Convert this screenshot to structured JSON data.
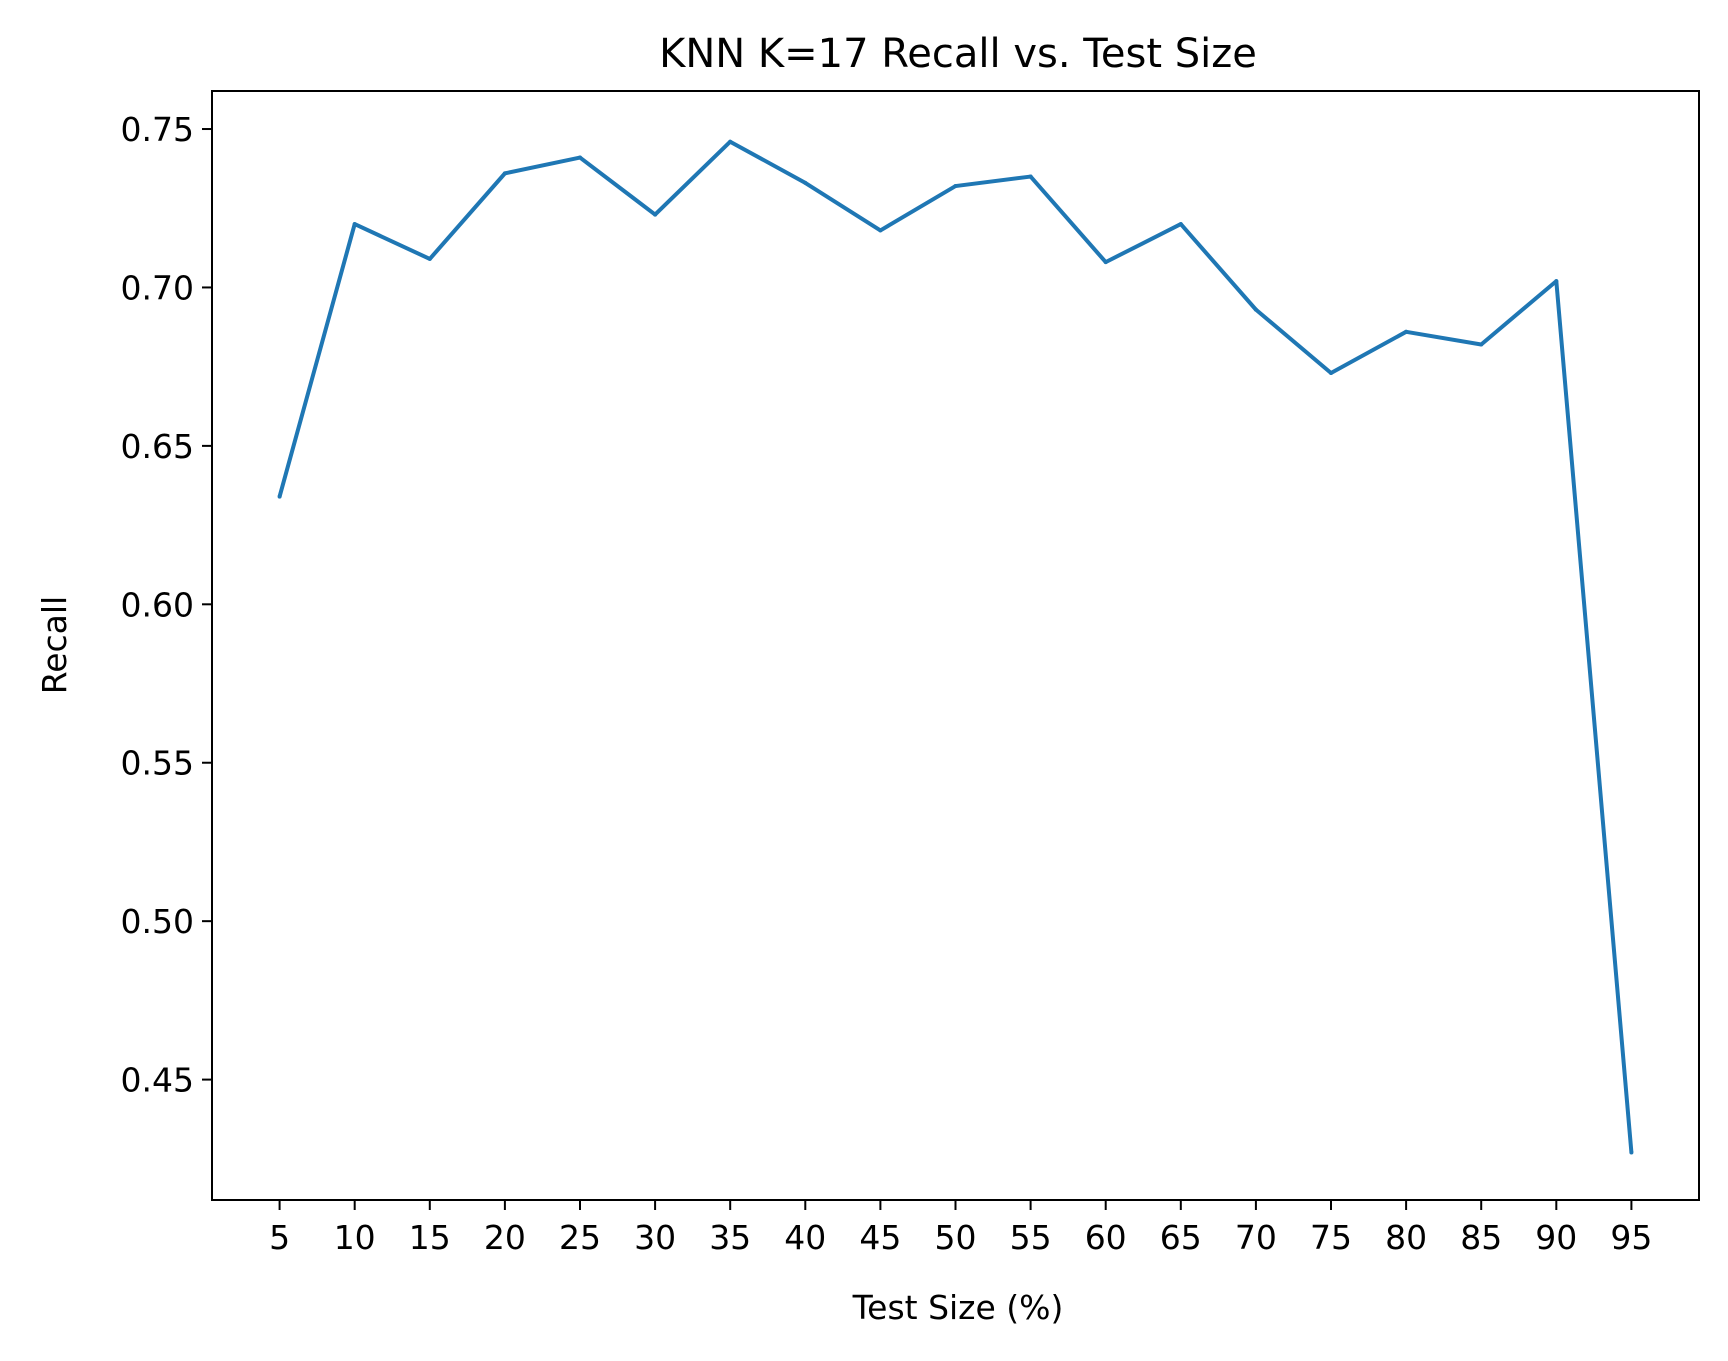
{
  "chart_data": {
    "type": "line",
    "title": "KNN K=17  Recall vs. Test Size",
    "xlabel": "Test Size (%)",
    "ylabel": "Recall",
    "x": [
      5,
      10,
      15,
      20,
      25,
      30,
      35,
      40,
      45,
      50,
      55,
      60,
      65,
      70,
      75,
      80,
      85,
      90,
      95
    ],
    "x_tick_labels": [
      "5",
      "10",
      "15",
      "20",
      "25",
      "30",
      "35",
      "40",
      "45",
      "50",
      "55",
      "60",
      "65",
      "70",
      "75",
      "80",
      "85",
      "90",
      "95"
    ],
    "y_ticks": [
      0.45,
      0.5,
      0.55,
      0.6,
      0.65,
      0.7,
      0.75
    ],
    "y_tick_labels": [
      "0.45",
      "0.50",
      "0.55",
      "0.60",
      "0.65",
      "0.70",
      "0.75"
    ],
    "xlim": [
      0.5,
      99.5
    ],
    "ylim": [
      0.412,
      0.762
    ],
    "grid": false,
    "series": [
      {
        "color": "#1f77b4",
        "values": [
          0.634,
          0.72,
          0.709,
          0.736,
          0.741,
          0.723,
          0.746,
          0.733,
          0.718,
          0.732,
          0.735,
          0.708,
          0.72,
          0.693,
          0.673,
          0.686,
          0.682,
          0.702,
          0.427
        ]
      }
    ]
  }
}
